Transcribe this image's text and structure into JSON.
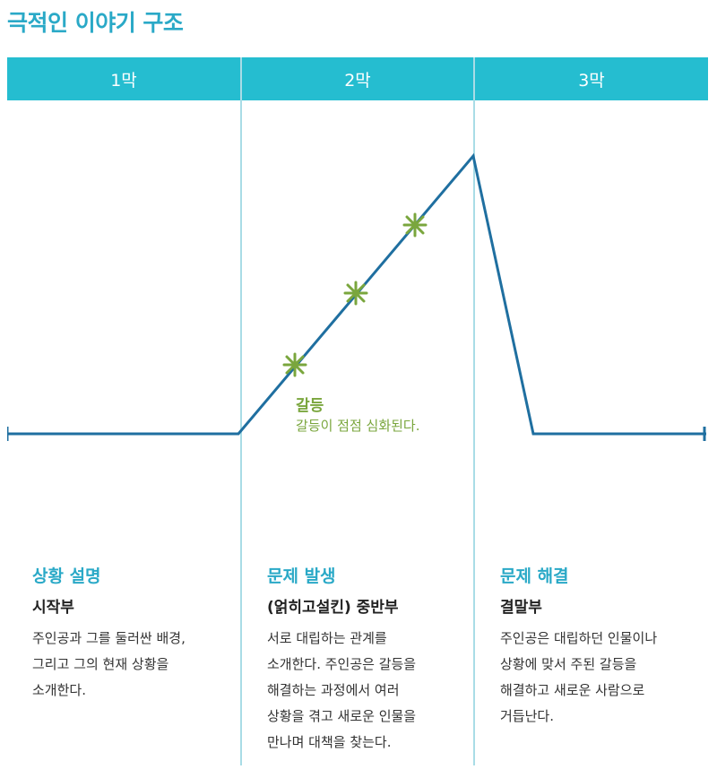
{
  "title": "극적인 이야기 구조",
  "acts": [
    {
      "label": "1막"
    },
    {
      "label": "2막"
    },
    {
      "label": "3막"
    }
  ],
  "conflict": {
    "title": "갈등",
    "desc": "갈등이 점점 심화된다."
  },
  "sections": [
    {
      "title": "상황 설명",
      "subtitle": "시작부",
      "body": "주인공과 그를 둘러싼 배경,\n그리고 그의 현재 상황을\n소개한다."
    },
    {
      "title": "문제 발생",
      "subtitle": "(얽히고설킨) 중반부",
      "body": "서로 대립하는 관계를\n소개한다. 주인공은 갈등을\n해결하는 과정에서 여러\n상황을 겪고 새로운 인물을\n만나며 대책을 찾는다."
    },
    {
      "title": "문제 해결",
      "subtitle": "결말부",
      "body": "주인공은 대립하던 인물이나\n상황에 맞서 주된 갈등을\n해결하고 새로운 사람으로\n거듭난다."
    }
  ],
  "colors": {
    "header": "#25bdd0",
    "title": "#2aa9c7",
    "line": "#1f6fa0",
    "conflict": "#7aa63d",
    "divider": "#a9dce6"
  }
}
